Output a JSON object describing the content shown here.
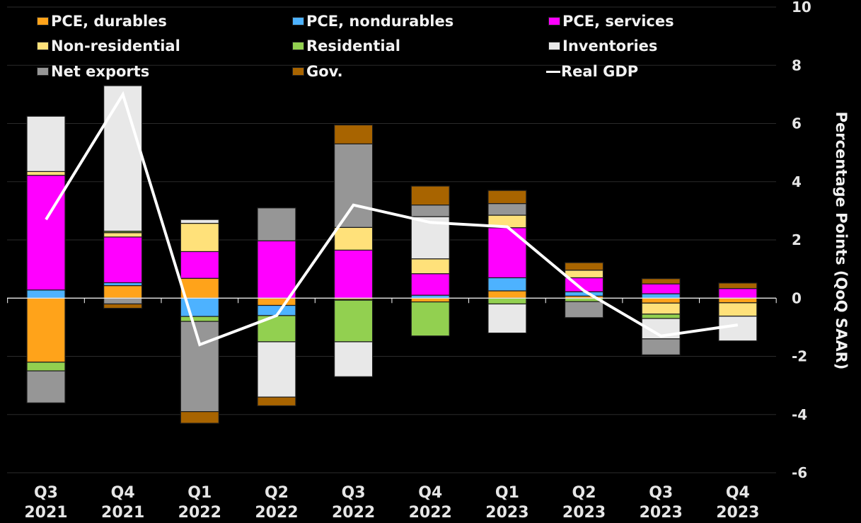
{
  "chart_data": {
    "type": "bar",
    "stacked": true,
    "title": "",
    "xlabel": "",
    "ylabel": "Percentage Points (QoQ SAAR)",
    "ylim": [
      -6,
      10
    ],
    "yticks": [
      10,
      8,
      6,
      4,
      2,
      0,
      -2,
      -4,
      -6
    ],
    "grid": true,
    "legend_position": "top",
    "y_axis_side": "right",
    "categories": [
      [
        "Q3",
        "2021"
      ],
      [
        "Q4",
        "2021"
      ],
      [
        "Q1",
        "2022"
      ],
      [
        "Q2",
        "2022"
      ],
      [
        "Q3",
        "2022"
      ],
      [
        "Q4",
        "2022"
      ],
      [
        "Q1",
        "2023"
      ],
      [
        "Q2",
        "2023"
      ],
      [
        "Q3",
        "2023"
      ],
      [
        "Q4",
        "2023"
      ]
    ],
    "series": [
      {
        "name": "PCE, durables",
        "color": "#FFA31A",
        "values": [
          -2.2,
          0.43,
          0.68,
          -0.25,
          -0.05,
          -0.13,
          0.25,
          0.07,
          -0.17,
          -0.16
        ]
      },
      {
        "name": "PCE, nondurables",
        "color": "#4DB2FF",
        "values": [
          0.28,
          0.1,
          -0.63,
          -0.35,
          -0.02,
          0.1,
          0.45,
          0.15,
          0.15,
          0.0
        ]
      },
      {
        "name": "PCE, services",
        "color": "#FF00FF",
        "values": [
          3.94,
          1.57,
          0.92,
          1.97,
          1.65,
          0.74,
          1.72,
          0.48,
          0.34,
          0.33
        ]
      },
      {
        "name": "Non-residential",
        "color": "#FFE17A",
        "values": [
          0.13,
          0.15,
          0.97,
          0.0,
          0.78,
          0.51,
          0.43,
          0.26,
          -0.38,
          -0.46
        ]
      },
      {
        "name": "Residential",
        "color": "#92D050",
        "values": [
          -0.3,
          0.05,
          -0.17,
          -0.9,
          -1.43,
          -1.17,
          -0.2,
          -0.12,
          -0.15,
          0.0
        ]
      },
      {
        "name": "Inventories",
        "color": "#E8E8E8",
        "values": [
          1.9,
          5.0,
          0.13,
          -1.9,
          -1.2,
          1.45,
          -1.0,
          0.0,
          -0.7,
          -0.85
        ]
      },
      {
        "name": "Net exports",
        "color": "#969696",
        "values": [
          -1.1,
          -0.2,
          -3.1,
          1.13,
          2.87,
          0.4,
          0.4,
          -0.55,
          -0.55,
          0.0
        ]
      },
      {
        "name": "Gov.",
        "color": "#A86400",
        "values": [
          0.0,
          -0.15,
          -0.4,
          -0.3,
          0.65,
          0.65,
          0.45,
          0.26,
          0.18,
          0.19
        ]
      }
    ],
    "line": {
      "name": "Real GDP",
      "color": "#FFFFFF",
      "values": [
        2.7,
        7.0,
        -1.6,
        -0.6,
        3.2,
        2.6,
        2.45,
        0.25,
        -1.3,
        -0.92
      ]
    }
  },
  "legend": {
    "items": [
      {
        "label": "PCE, durables",
        "color": "#FFA31A",
        "kind": "box"
      },
      {
        "label": "PCE, nondurables",
        "color": "#4DB2FF",
        "kind": "box"
      },
      {
        "label": "PCE, services",
        "color": "#FF00FF",
        "kind": "box"
      },
      {
        "label": "Non-residential",
        "color": "#FFE17A",
        "kind": "box"
      },
      {
        "label": "Residential",
        "color": "#92D050",
        "kind": "box"
      },
      {
        "label": "Inventories",
        "color": "#E8E8E8",
        "kind": "box"
      },
      {
        "label": "Net exports",
        "color": "#969696",
        "kind": "box"
      },
      {
        "label": "Gov.",
        "color": "#A86400",
        "kind": "box"
      },
      {
        "label": "Real GDP",
        "color": "#FFFFFF",
        "kind": "line"
      }
    ]
  }
}
